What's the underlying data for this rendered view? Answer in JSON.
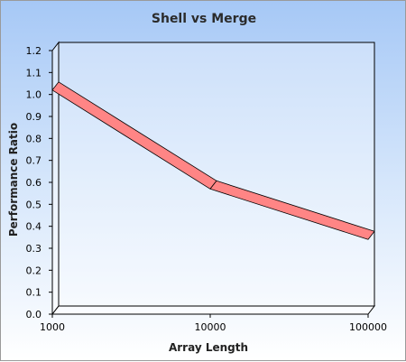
{
  "chart_data": {
    "type": "line",
    "title": "Shell vs Merge",
    "xlabel": "Array Length",
    "ylabel": "Performance Ratio",
    "x_scale": "log",
    "x": [
      1000,
      10000,
      100000
    ],
    "x_tick_labels": [
      "1000",
      "10000",
      "100000"
    ],
    "series": [
      {
        "values": [
          1.02,
          0.57,
          0.34
        ]
      }
    ],
    "ylim": [
      0,
      1.2
    ],
    "y_ticks": [
      0.0,
      0.1,
      0.2,
      0.3,
      0.4,
      0.5,
      0.6,
      0.7,
      0.8,
      0.9,
      1.0,
      1.1,
      1.2
    ],
    "y_tick_labels": [
      "0.0",
      "0.1",
      "0.2",
      "0.3",
      "0.4",
      "0.5",
      "0.6",
      "0.7",
      "0.8",
      "0.9",
      "1.0",
      "1.1",
      "1.2"
    ],
    "grid": false,
    "legend": "none",
    "colors": {
      "line_top": "#ff8585",
      "line_side": "#d63a3a",
      "line_outline": "#000000"
    }
  }
}
